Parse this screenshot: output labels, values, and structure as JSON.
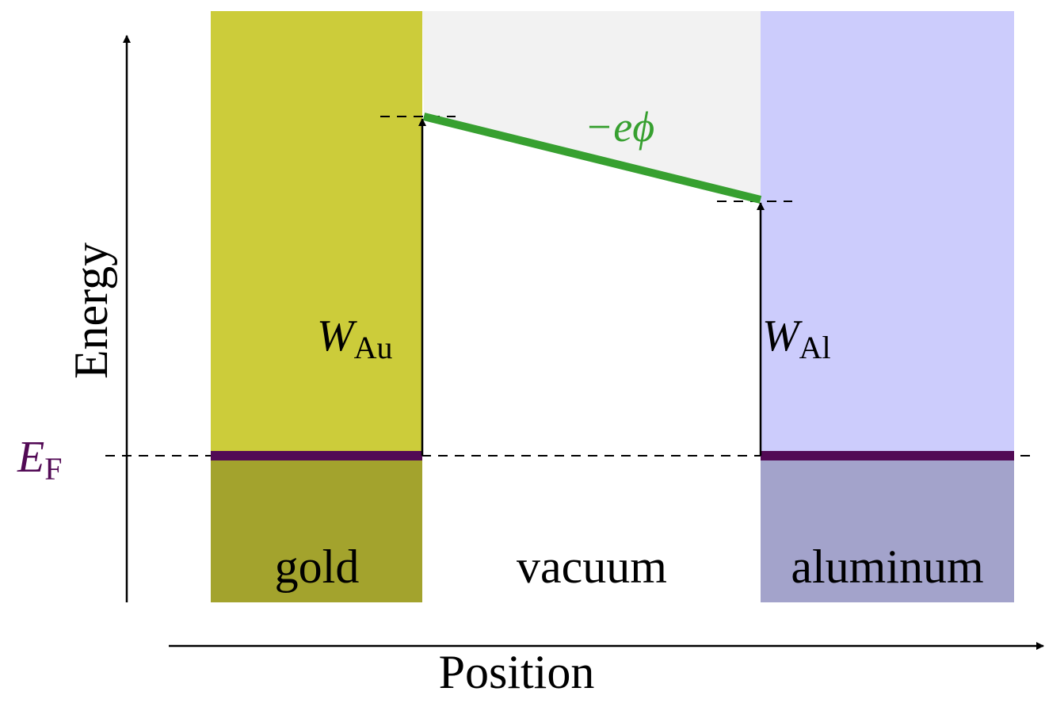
{
  "axes": {
    "y_label": "Energy",
    "x_label": "Position"
  },
  "regions": [
    {
      "label": "gold"
    },
    {
      "label": "vacuum"
    },
    {
      "label": "aluminum"
    }
  ],
  "labels": {
    "fermi_level": {
      "symbol": "E",
      "subscript": "F"
    },
    "work_function_gold": {
      "symbol": "W",
      "subscript": "Au"
    },
    "work_function_aluminum": {
      "symbol": "W",
      "subscript": "Al"
    },
    "potential": "−eϕ"
  }
}
